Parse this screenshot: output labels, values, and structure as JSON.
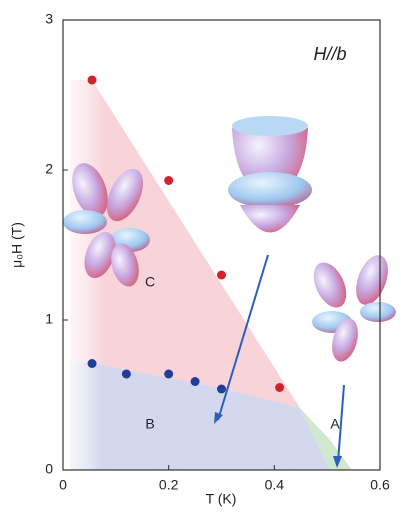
{
  "chart_data": {
    "type": "scatter",
    "xlabel": "T (K)",
    "ylabel": "μ₀H (T)",
    "annotations": [
      "H//b",
      "C",
      "B",
      "A"
    ],
    "series": [
      {
        "color": "#d0232a",
        "x": [
          0.055,
          0.2,
          0.3,
          0.41
        ],
        "values": [
          2.6,
          1.93,
          1.3,
          0.55
        ]
      },
      {
        "color": "#1f3f9a",
        "x": [
          0.055,
          0.12,
          0.2,
          0.25,
          0.3
        ],
        "values": [
          0.71,
          0.64,
          0.64,
          0.59,
          0.54
        ]
      }
    ],
    "xlim": [
      0,
      0.6
    ],
    "xticks": [
      0,
      0.2,
      0.4,
      0.6
    ],
    "ylim": [
      0,
      3
    ],
    "yticks": [
      0,
      1,
      2,
      3
    ]
  }
}
